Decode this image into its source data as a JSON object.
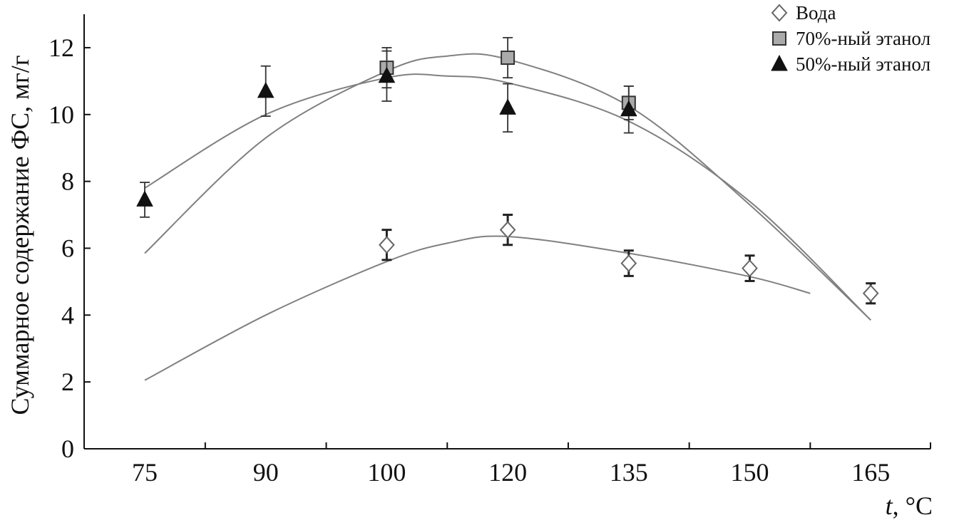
{
  "chart_data": {
    "type": "scatter",
    "title": "",
    "xlabel_italic": "t",
    "xlabel_rest": ", °C",
    "ylabel": "Суммарное содержание ФС, мг/г",
    "categories": [
      "75",
      "90",
      "100",
      "120",
      "135",
      "150",
      "165"
    ],
    "ylim": [
      0,
      13
    ],
    "yticks": [
      0,
      2,
      4,
      6,
      8,
      10,
      12
    ],
    "grid": false,
    "legend_position": "top-right",
    "series": [
      {
        "name": "Вода",
        "marker": "diamond",
        "x": [
          2,
          3,
          4,
          5,
          6
        ],
        "y": [
          6.1,
          6.55,
          5.55,
          5.4,
          4.65
        ],
        "err": [
          0.45,
          0.45,
          0.38,
          0.38,
          0.3
        ],
        "trend": [
          [
            0,
            2.05
          ],
          [
            1,
            4.0
          ],
          [
            2,
            5.6
          ],
          [
            2.5,
            6.15
          ],
          [
            3,
            6.35
          ],
          [
            4,
            5.85
          ],
          [
            5,
            5.15
          ],
          [
            5.5,
            4.65
          ]
        ]
      },
      {
        "name": "70%-ный этанол",
        "marker": "square",
        "x": [
          2,
          3,
          4
        ],
        "y": [
          11.4,
          11.7,
          10.35
        ],
        "err": [
          0.6,
          0.6,
          0.5
        ],
        "trend": [
          [
            0,
            5.85
          ],
          [
            1,
            9.3
          ],
          [
            2,
            11.3
          ],
          [
            2.5,
            11.75
          ],
          [
            3,
            11.65
          ],
          [
            4,
            10.25
          ],
          [
            5,
            7.3
          ],
          [
            6,
            3.85
          ]
        ]
      },
      {
        "name": "50%-ный этанол",
        "marker": "triangle",
        "x": [
          0,
          1,
          2,
          3,
          4
        ],
        "y": [
          7.45,
          10.7,
          11.15,
          10.2,
          10.15
        ],
        "err": [
          0.52,
          0.75,
          0.75,
          0.72,
          0.7
        ],
        "trend": [
          [
            0,
            7.8
          ],
          [
            1,
            10.0
          ],
          [
            2,
            11.1
          ],
          [
            2.5,
            11.15
          ],
          [
            3,
            10.95
          ],
          [
            4,
            9.8
          ],
          [
            5,
            7.4
          ],
          [
            6,
            3.85
          ]
        ]
      }
    ],
    "colors": {
      "axis": "#111111",
      "curve": "#808080",
      "square_fill": "#aaaaaa",
      "diamond_fill": "#ffffff",
      "triangle_fill": "#111111"
    }
  }
}
